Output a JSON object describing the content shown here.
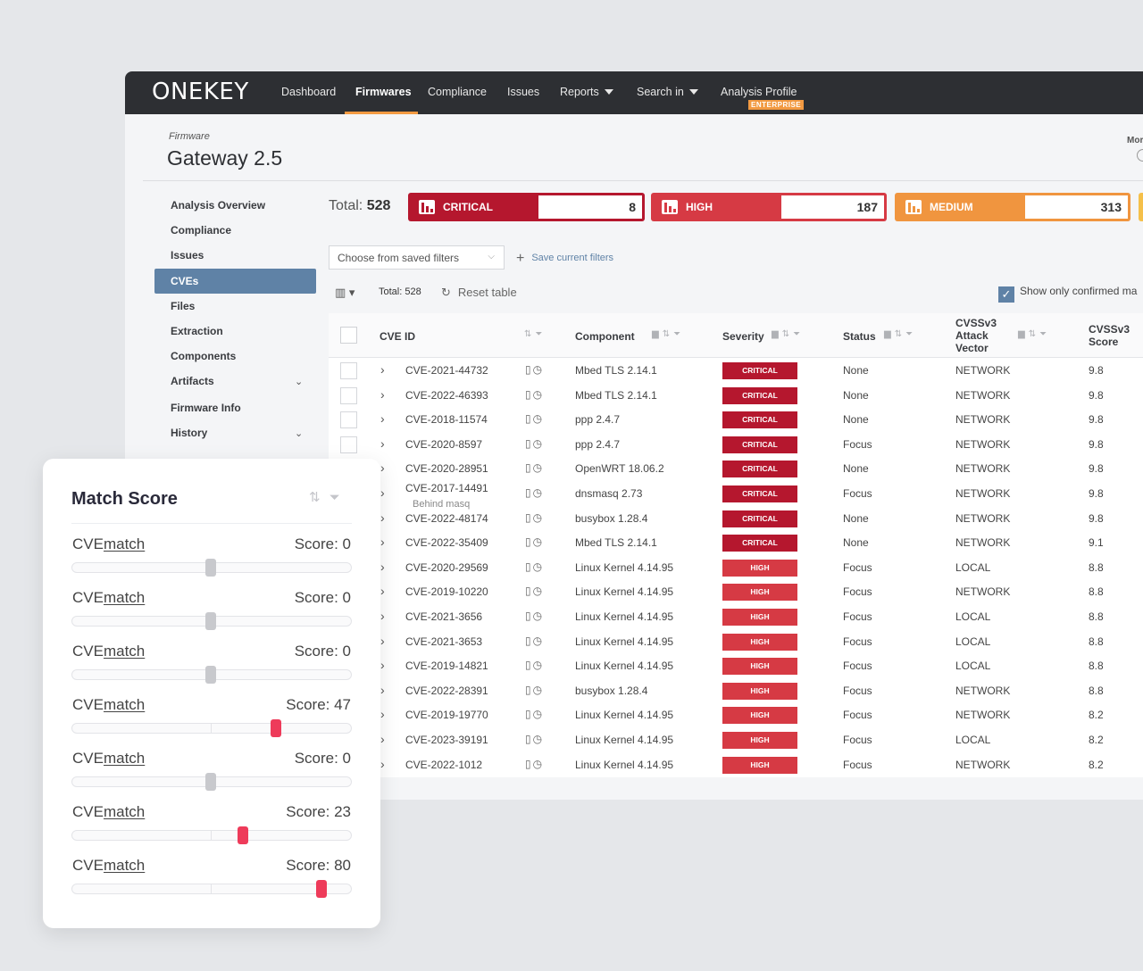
{
  "header": {
    "logo": "ONEKEY",
    "nav": [
      "Dashboard",
      "Firmwares",
      "Compliance",
      "Issues",
      "Reports",
      "Search in",
      "Analysis Profile"
    ],
    "enterprise_badge": "ENTERPRISE"
  },
  "page": {
    "breadcrumb": "Firmware",
    "title": "Gateway 2.5",
    "more_label": "Mor"
  },
  "sidebar": {
    "items": [
      "Analysis Overview",
      "Compliance",
      "Issues",
      "CVEs",
      "Files",
      "Extraction",
      "Components",
      "Artifacts",
      "Firmware Info",
      "History"
    ]
  },
  "summary": {
    "total_label": "Total:",
    "total_value": "528",
    "critical_label": "CRITICAL",
    "critical_value": "8",
    "high_label": "HIGH",
    "high_value": "187",
    "medium_label": "MEDIUM",
    "medium_value": "313"
  },
  "filters": {
    "saved_filters_placeholder": "Choose from saved filters",
    "save_current": "Save current filters",
    "total_small": "Total: 528",
    "reset_table": "Reset table",
    "show_confirmed": "Show only confirmed ma"
  },
  "table": {
    "headers": {
      "cve_id": "CVE ID",
      "component": "Component",
      "severity": "Severity",
      "status": "Status",
      "attack_vector_1": "CVSSv3",
      "attack_vector_2": "Attack",
      "attack_vector_3": "Vector",
      "score_1": "CVSSv3",
      "score_2": "Score"
    },
    "rows": [
      {
        "cve": "CVE-2021-44732",
        "sub": "",
        "component": "Mbed TLS 2.14.1",
        "severity": "CRITICAL",
        "status": "None",
        "vector": "NETWORK",
        "score": "9.8"
      },
      {
        "cve": "CVE-2022-46393",
        "sub": "",
        "component": "Mbed TLS 2.14.1",
        "severity": "CRITICAL",
        "status": "None",
        "vector": "NETWORK",
        "score": "9.8"
      },
      {
        "cve": "CVE-2018-11574",
        "sub": "",
        "component": "ppp 2.4.7",
        "severity": "CRITICAL",
        "status": "None",
        "vector": "NETWORK",
        "score": "9.8"
      },
      {
        "cve": "CVE-2020-8597",
        "sub": "",
        "component": "ppp 2.4.7",
        "severity": "CRITICAL",
        "status": "Focus",
        "vector": "NETWORK",
        "score": "9.8"
      },
      {
        "cve": "CVE-2020-28951",
        "sub": "",
        "component": "OpenWRT 18.06.2",
        "severity": "CRITICAL",
        "status": "None",
        "vector": "NETWORK",
        "score": "9.8"
      },
      {
        "cve": "CVE-2017-14491",
        "sub": "Behind masq",
        "component": "dnsmasq 2.73",
        "severity": "CRITICAL",
        "status": "Focus",
        "vector": "NETWORK",
        "score": "9.8"
      },
      {
        "cve": "CVE-2022-48174",
        "sub": "",
        "component": "busybox 1.28.4",
        "severity": "CRITICAL",
        "status": "None",
        "vector": "NETWORK",
        "score": "9.8"
      },
      {
        "cve": "CVE-2022-35409",
        "sub": "",
        "component": "Mbed TLS 2.14.1",
        "severity": "CRITICAL",
        "status": "None",
        "vector": "NETWORK",
        "score": "9.1"
      },
      {
        "cve": "CVE-2020-29569",
        "sub": "",
        "component": "Linux Kernel 4.14.95",
        "severity": "HIGH",
        "status": "Focus",
        "vector": "LOCAL",
        "score": "8.8"
      },
      {
        "cve": "CVE-2019-10220",
        "sub": "",
        "component": "Linux Kernel 4.14.95",
        "severity": "HIGH",
        "status": "Focus",
        "vector": "NETWORK",
        "score": "8.8"
      },
      {
        "cve": "CVE-2021-3656",
        "sub": "",
        "component": "Linux Kernel 4.14.95",
        "severity": "HIGH",
        "status": "Focus",
        "vector": "LOCAL",
        "score": "8.8"
      },
      {
        "cve": "CVE-2021-3653",
        "sub": "",
        "component": "Linux Kernel 4.14.95",
        "severity": "HIGH",
        "status": "Focus",
        "vector": "LOCAL",
        "score": "8.8"
      },
      {
        "cve": "CVE-2019-14821",
        "sub": "",
        "component": "Linux Kernel 4.14.95",
        "severity": "HIGH",
        "status": "Focus",
        "vector": "LOCAL",
        "score": "8.8"
      },
      {
        "cve": "CVE-2022-28391",
        "sub": "",
        "component": "busybox 1.28.4",
        "severity": "HIGH",
        "status": "Focus",
        "vector": "NETWORK",
        "score": "8.8"
      },
      {
        "cve": "CVE-2019-19770",
        "sub": "",
        "component": "Linux Kernel 4.14.95",
        "severity": "HIGH",
        "status": "Focus",
        "vector": "NETWORK",
        "score": "8.2"
      },
      {
        "cve": "CVE-2023-39191",
        "sub": "",
        "component": "Linux Kernel 4.14.95",
        "severity": "HIGH",
        "status": "Focus",
        "vector": "LOCAL",
        "score": "8.2"
      },
      {
        "cve": "CVE-2022-1012",
        "sub": "",
        "component": "Linux Kernel 4.14.95",
        "severity": "HIGH",
        "status": "Focus",
        "vector": "NETWORK",
        "score": "8.2"
      }
    ]
  },
  "match_card": {
    "title": "Match Score",
    "items": [
      {
        "prefix": "CVE",
        "link": "match",
        "score_text": "Score: 0",
        "score": 0
      },
      {
        "prefix": "CVE",
        "link": "match",
        "score_text": "Score: 0",
        "score": 0
      },
      {
        "prefix": "CVE",
        "link": "match",
        "score_text": "Score: 0",
        "score": 0
      },
      {
        "prefix": "CVE",
        "link": "match",
        "score_text": "Score: 47",
        "score": 47
      },
      {
        "prefix": "CVE",
        "link": "match",
        "score_text": "Score: 0",
        "score": 0
      },
      {
        "prefix": "CVE",
        "link": "match",
        "score_text": "Score: 23",
        "score": 23
      },
      {
        "prefix": "CVE",
        "link": "match",
        "score_text": "Score: 80",
        "score": 80
      }
    ]
  },
  "colors": {
    "critical": "#b5172e",
    "high": "#d63a44",
    "medium": "#f0953f",
    "accent": "#5f82a6",
    "nav_active": "#f29a42",
    "thumb_active": "#ee3b5a",
    "thumb_idle": "#c8c9cd"
  }
}
